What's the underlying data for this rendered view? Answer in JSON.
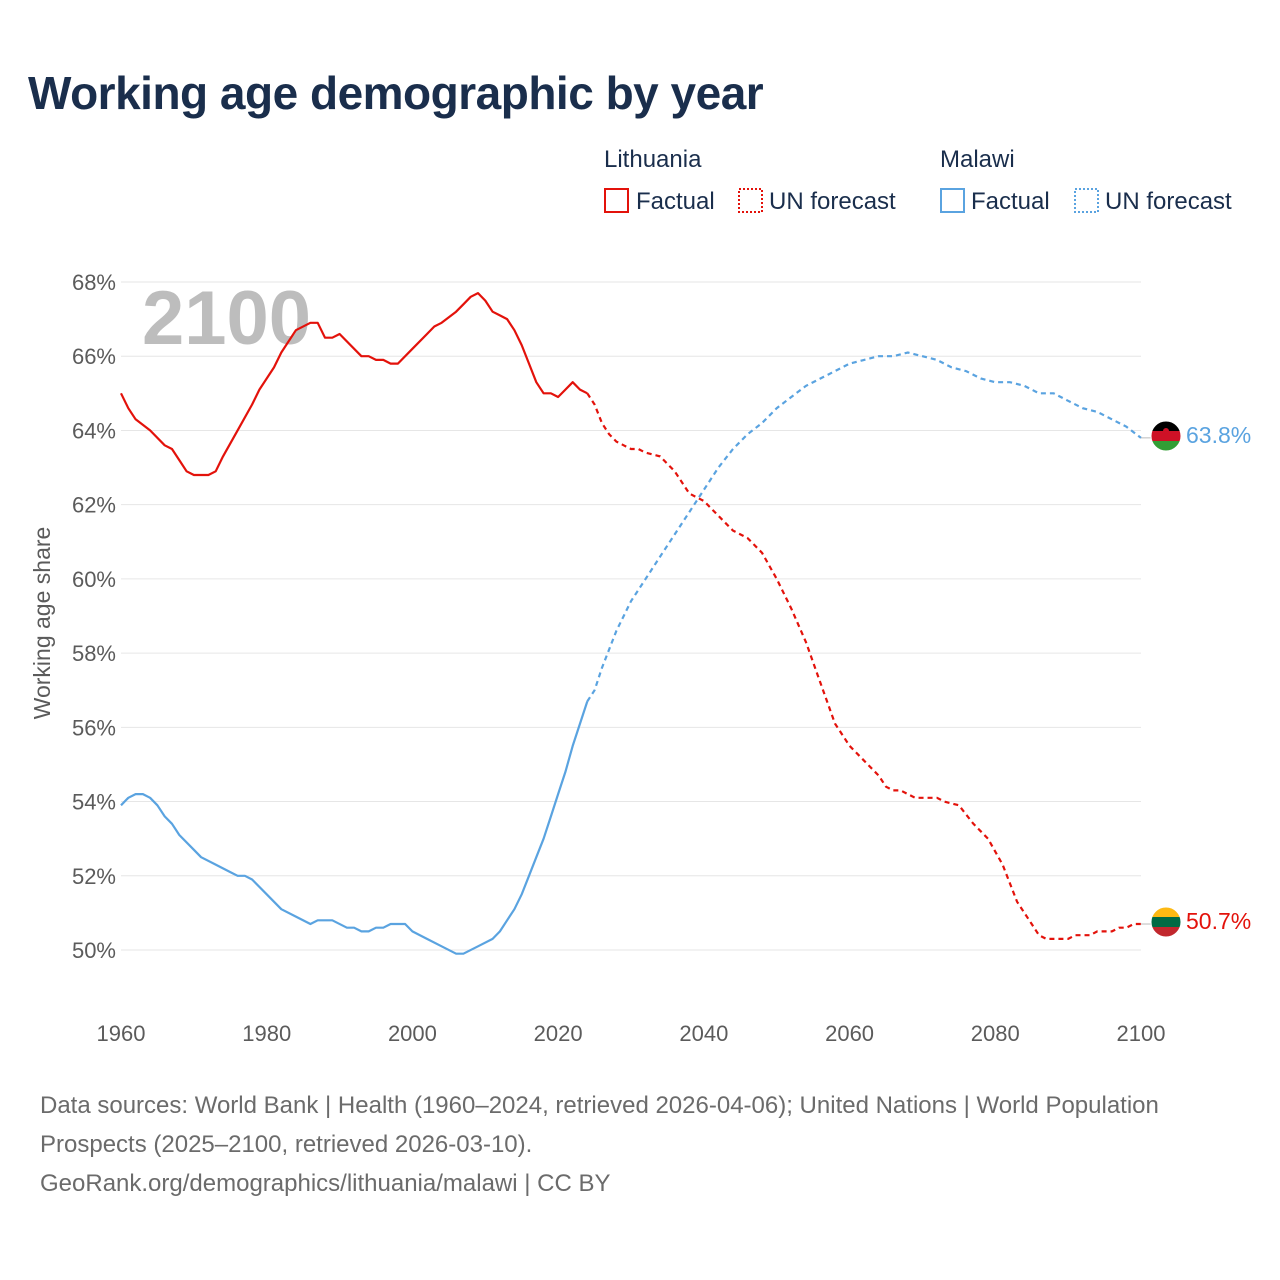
{
  "title": "Working age demographic by year",
  "current_year_label": "2100",
  "legend": {
    "groups": [
      {
        "name": "Lithuania",
        "factual_label": "Factual",
        "forecast_label": "UN forecast",
        "color": "#e3120b"
      },
      {
        "name": "Malawi",
        "factual_label": "Factual",
        "forecast_label": "UN forecast",
        "color": "#5aa3e0"
      }
    ]
  },
  "footer": {
    "sources": "Data sources: World Bank | Health (1960–2024, retrieved 2026-04-06); United Nations | World Population Prospects (2025–2100, retrieved 2026-03-10).",
    "attribution": "GeoRank.org/demographics/lithuania/malawi | CC BY"
  },
  "chart_data": {
    "type": "line",
    "title": "Working age demographic by year",
    "xlabel": "",
    "ylabel": "Working age share",
    "xlim": [
      1960,
      2100
    ],
    "ylim": [
      49,
      68
    ],
    "x_ticks": [
      1960,
      1980,
      2000,
      2020,
      2040,
      2060,
      2080,
      2100
    ],
    "y_ticks": [
      50,
      52,
      54,
      56,
      58,
      60,
      62,
      64,
      66,
      68
    ],
    "y_tick_labels": [
      "50%",
      "52%",
      "54%",
      "56%",
      "58%",
      "60%",
      "62%",
      "64%",
      "66%",
      "68%"
    ],
    "forecast_start_year": 2024,
    "series": [
      {
        "name": "Lithuania",
        "color": "#e3120b",
        "end_label": "50.7%",
        "points": [
          [
            1960,
            65.0
          ],
          [
            1961,
            64.6
          ],
          [
            1962,
            64.3
          ],
          [
            1964,
            64.0
          ],
          [
            1966,
            63.6
          ],
          [
            1967,
            63.5
          ],
          [
            1968,
            63.2
          ],
          [
            1969,
            62.9
          ],
          [
            1970,
            62.8
          ],
          [
            1972,
            62.8
          ],
          [
            1973,
            62.9
          ],
          [
            1974,
            63.3
          ],
          [
            1976,
            64.0
          ],
          [
            1978,
            64.7
          ],
          [
            1979,
            65.1
          ],
          [
            1981,
            65.7
          ],
          [
            1982,
            66.1
          ],
          [
            1984,
            66.7
          ],
          [
            1986,
            66.9
          ],
          [
            1987,
            66.9
          ],
          [
            1988,
            66.5
          ],
          [
            1989,
            66.5
          ],
          [
            1990,
            66.6
          ],
          [
            1993,
            66.0
          ],
          [
            1994,
            66.0
          ],
          [
            1995,
            65.9
          ],
          [
            1996,
            65.9
          ],
          [
            1997,
            65.8
          ],
          [
            1998,
            65.8
          ],
          [
            2000,
            66.2
          ],
          [
            2002,
            66.6
          ],
          [
            2003,
            66.8
          ],
          [
            2004,
            66.9
          ],
          [
            2006,
            67.2
          ],
          [
            2007,
            67.4
          ],
          [
            2008,
            67.6
          ],
          [
            2009,
            67.7
          ],
          [
            2010,
            67.5
          ],
          [
            2011,
            67.2
          ],
          [
            2012,
            67.1
          ],
          [
            2013,
            67.0
          ],
          [
            2014,
            66.7
          ],
          [
            2015,
            66.3
          ],
          [
            2016,
            65.8
          ],
          [
            2017,
            65.3
          ],
          [
            2018,
            65.0
          ],
          [
            2019,
            65.0
          ],
          [
            2020,
            64.9
          ],
          [
            2021,
            65.1
          ],
          [
            2022,
            65.3
          ],
          [
            2023,
            65.1
          ],
          [
            2024,
            65.0
          ],
          [
            2025,
            64.7
          ],
          [
            2026,
            64.2
          ],
          [
            2027,
            63.9
          ],
          [
            2028,
            63.7
          ],
          [
            2029,
            63.6
          ],
          [
            2030,
            63.5
          ],
          [
            2031,
            63.5
          ],
          [
            2032,
            63.4
          ],
          [
            2034,
            63.3
          ],
          [
            2036,
            62.9
          ],
          [
            2038,
            62.3
          ],
          [
            2040,
            62.1
          ],
          [
            2042,
            61.7
          ],
          [
            2044,
            61.3
          ],
          [
            2046,
            61.1
          ],
          [
            2048,
            60.7
          ],
          [
            2050,
            60.0
          ],
          [
            2052,
            59.2
          ],
          [
            2054,
            58.3
          ],
          [
            2056,
            57.2
          ],
          [
            2058,
            56.1
          ],
          [
            2060,
            55.5
          ],
          [
            2062,
            55.1
          ],
          [
            2064,
            54.7
          ],
          [
            2065,
            54.4
          ],
          [
            2066,
            54.3
          ],
          [
            2067,
            54.3
          ],
          [
            2069,
            54.1
          ],
          [
            2072,
            54.1
          ],
          [
            2073,
            54.0
          ],
          [
            2075,
            53.9
          ],
          [
            2077,
            53.4
          ],
          [
            2079,
            53.0
          ],
          [
            2081,
            52.3
          ],
          [
            2083,
            51.3
          ],
          [
            2085,
            50.7
          ],
          [
            2086,
            50.4
          ],
          [
            2087,
            50.3
          ],
          [
            2090,
            50.3
          ],
          [
            2091,
            50.4
          ],
          [
            2093,
            50.4
          ],
          [
            2094,
            50.5
          ],
          [
            2096,
            50.5
          ],
          [
            2097,
            50.6
          ],
          [
            2098,
            50.6
          ],
          [
            2099,
            50.7
          ],
          [
            2100,
            50.7
          ]
        ]
      },
      {
        "name": "Malawi",
        "color": "#5aa3e0",
        "end_label": "63.8%",
        "points": [
          [
            1960,
            53.9
          ],
          [
            1961,
            54.1
          ],
          [
            1962,
            54.2
          ],
          [
            1963,
            54.2
          ],
          [
            1964,
            54.1
          ],
          [
            1965,
            53.9
          ],
          [
            1966,
            53.6
          ],
          [
            1967,
            53.4
          ],
          [
            1968,
            53.1
          ],
          [
            1970,
            52.7
          ],
          [
            1971,
            52.5
          ],
          [
            1973,
            52.3
          ],
          [
            1975,
            52.1
          ],
          [
            1976,
            52.0
          ],
          [
            1977,
            52.0
          ],
          [
            1978,
            51.9
          ],
          [
            1980,
            51.5
          ],
          [
            1982,
            51.1
          ],
          [
            1984,
            50.9
          ],
          [
            1986,
            50.7
          ],
          [
            1987,
            50.8
          ],
          [
            1989,
            50.8
          ],
          [
            1991,
            50.6
          ],
          [
            1992,
            50.6
          ],
          [
            1993,
            50.5
          ],
          [
            1994,
            50.5
          ],
          [
            1995,
            50.6
          ],
          [
            1996,
            50.6
          ],
          [
            1997,
            50.7
          ],
          [
            1999,
            50.7
          ],
          [
            2000,
            50.5
          ],
          [
            2002,
            50.3
          ],
          [
            2004,
            50.1
          ],
          [
            2006,
            49.9
          ],
          [
            2007,
            49.9
          ],
          [
            2009,
            50.1
          ],
          [
            2011,
            50.3
          ],
          [
            2012,
            50.5
          ],
          [
            2013,
            50.8
          ],
          [
            2014,
            51.1
          ],
          [
            2015,
            51.5
          ],
          [
            2016,
            52.0
          ],
          [
            2017,
            52.5
          ],
          [
            2018,
            53.0
          ],
          [
            2019,
            53.6
          ],
          [
            2020,
            54.2
          ],
          [
            2021,
            54.8
          ],
          [
            2022,
            55.5
          ],
          [
            2023,
            56.1
          ],
          [
            2024,
            56.7
          ],
          [
            2025,
            57.0
          ],
          [
            2026,
            57.6
          ],
          [
            2028,
            58.6
          ],
          [
            2030,
            59.4
          ],
          [
            2032,
            60.0
          ],
          [
            2034,
            60.6
          ],
          [
            2036,
            61.2
          ],
          [
            2038,
            61.8
          ],
          [
            2040,
            62.4
          ],
          [
            2042,
            63.0
          ],
          [
            2044,
            63.5
          ],
          [
            2046,
            63.9
          ],
          [
            2048,
            64.2
          ],
          [
            2050,
            64.6
          ],
          [
            2052,
            64.9
          ],
          [
            2054,
            65.2
          ],
          [
            2056,
            65.4
          ],
          [
            2058,
            65.6
          ],
          [
            2060,
            65.8
          ],
          [
            2062,
            65.9
          ],
          [
            2064,
            66.0
          ],
          [
            2066,
            66.0
          ],
          [
            2068,
            66.1
          ],
          [
            2070,
            66.0
          ],
          [
            2072,
            65.9
          ],
          [
            2074,
            65.7
          ],
          [
            2076,
            65.6
          ],
          [
            2078,
            65.4
          ],
          [
            2080,
            65.3
          ],
          [
            2082,
            65.3
          ],
          [
            2084,
            65.2
          ],
          [
            2086,
            65.0
          ],
          [
            2088,
            65.0
          ],
          [
            2090,
            64.8
          ],
          [
            2092,
            64.6
          ],
          [
            2094,
            64.5
          ],
          [
            2096,
            64.3
          ],
          [
            2098,
            64.1
          ],
          [
            2100,
            63.8
          ]
        ]
      }
    ]
  }
}
